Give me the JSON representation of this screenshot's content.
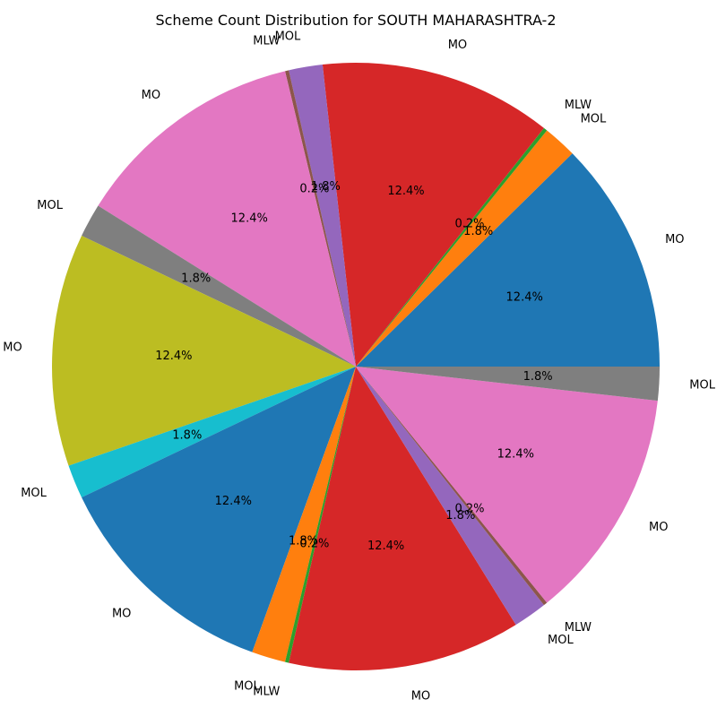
{
  "chart_data": {
    "type": "pie",
    "title": "Scheme Count Distribution for SOUTH MAHARASHTRA-2",
    "start_angle_deg": 0,
    "direction": "counterclockwise",
    "slices": [
      {
        "label": "MO",
        "value": 12.4,
        "pct_label": "12.4%",
        "color": "#1f77b4"
      },
      {
        "label": "MOL",
        "value": 1.8,
        "pct_label": "1.8%",
        "color": "#ff7f0e"
      },
      {
        "label": "MLW",
        "value": 0.2,
        "pct_label": "0.2%",
        "color": "#2ca02c"
      },
      {
        "label": "MO",
        "value": 12.4,
        "pct_label": "12.4%",
        "color": "#d62728"
      },
      {
        "label": "MOL",
        "value": 1.8,
        "pct_label": "1.8%",
        "color": "#9467bd"
      },
      {
        "label": "MLW",
        "value": 0.2,
        "pct_label": "0.2%",
        "color": "#8c564b"
      },
      {
        "label": "MO",
        "value": 12.4,
        "pct_label": "12.4%",
        "color": "#e377c2"
      },
      {
        "label": "MOL",
        "value": 1.8,
        "pct_label": "1.8%",
        "color": "#7f7f7f"
      },
      {
        "label": "MO",
        "value": 12.4,
        "pct_label": "12.4%",
        "color": "#bcbd22"
      },
      {
        "label": "MOL",
        "value": 1.8,
        "pct_label": "1.8%",
        "color": "#17becf"
      },
      {
        "label": "MO",
        "value": 12.4,
        "pct_label": "12.4%",
        "color": "#1f77b4"
      },
      {
        "label": "MOL",
        "value": 1.8,
        "pct_label": "1.8%",
        "color": "#ff7f0e"
      },
      {
        "label": "MLW",
        "value": 0.2,
        "pct_label": "0.2%",
        "color": "#2ca02c"
      },
      {
        "label": "MO",
        "value": 12.4,
        "pct_label": "12.4%",
        "color": "#d62728"
      },
      {
        "label": "MOL",
        "value": 1.8,
        "pct_label": "1.8%",
        "color": "#9467bd"
      },
      {
        "label": "MLW",
        "value": 0.2,
        "pct_label": "0.2%",
        "color": "#8c564b"
      },
      {
        "label": "MO",
        "value": 12.4,
        "pct_label": "12.4%",
        "color": "#e377c2"
      },
      {
        "label": "MOL",
        "value": 1.8,
        "pct_label": "1.8%",
        "color": "#7f7f7f"
      }
    ]
  }
}
